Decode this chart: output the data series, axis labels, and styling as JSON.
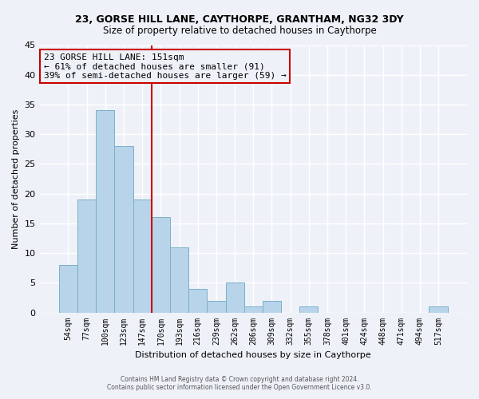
{
  "title1": "23, GORSE HILL LANE, CAYTHORPE, GRANTHAM, NG32 3DY",
  "title2": "Size of property relative to detached houses in Caythorpe",
  "xlabel": "Distribution of detached houses by size in Caythorpe",
  "ylabel": "Number of detached properties",
  "bar_labels": [
    "54sqm",
    "77sqm",
    "100sqm",
    "123sqm",
    "147sqm",
    "170sqm",
    "193sqm",
    "216sqm",
    "239sqm",
    "262sqm",
    "286sqm",
    "309sqm",
    "332sqm",
    "355sqm",
    "378sqm",
    "401sqm",
    "424sqm",
    "448sqm",
    "471sqm",
    "494sqm",
    "517sqm"
  ],
  "bar_heights": [
    8,
    19,
    34,
    28,
    19,
    16,
    11,
    4,
    2,
    5,
    1,
    2,
    0,
    1,
    0,
    0,
    0,
    0,
    0,
    0,
    1
  ],
  "bar_color": "#b8d4ea",
  "bar_edgecolor": "#7aafc8",
  "vline_color": "#cc0000",
  "annotation_text": "23 GORSE HILL LANE: 151sqm\n← 61% of detached houses are smaller (91)\n39% of semi-detached houses are larger (59) →",
  "annotation_box_edgecolor": "#cc0000",
  "ylim": [
    0,
    45
  ],
  "yticks": [
    0,
    5,
    10,
    15,
    20,
    25,
    30,
    35,
    40,
    45
  ],
  "footer_text": "Contains HM Land Registry data © Crown copyright and database right 2024.\nContains public sector information licensed under the Open Government Licence v3.0.",
  "bg_color": "#eef2f8",
  "grid_color": "#ffffff"
}
